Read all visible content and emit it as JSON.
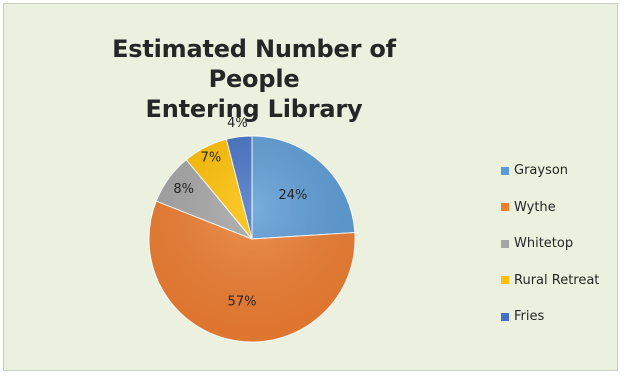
{
  "chart_data": {
    "type": "pie",
    "title_lines": [
      "Estimated Number of People",
      "Entering Library"
    ],
    "legend_position": "right",
    "slices": [
      {
        "name": "Grayson",
        "value": 24,
        "label": "24%",
        "color": "#5b9bd5"
      },
      {
        "name": "Wythe",
        "value": 57,
        "label": "57%",
        "color": "#ed7d31"
      },
      {
        "name": "Whitetop",
        "value": 8,
        "label": "8%",
        "color": "#a5a5a5"
      },
      {
        "name": "Rural Retreat",
        "value": 7,
        "label": "7%",
        "color": "#ffc000"
      },
      {
        "name": "Fries",
        "value": 4,
        "label": "4%",
        "color": "#4472c4"
      }
    ]
  }
}
